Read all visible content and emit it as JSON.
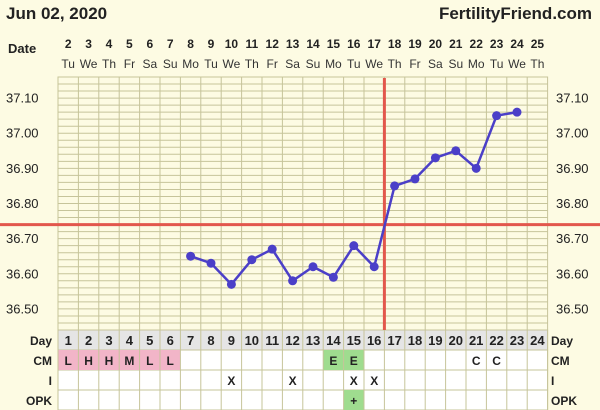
{
  "header": {
    "date": "Jun 02, 2020",
    "brand": "FertilityFriend.com"
  },
  "colors": {
    "background": "#fdfbe3",
    "grid": "#c6c49a",
    "line": "#4b3fc8",
    "coverline": "#e2574c",
    "cm_fertile": "#f2b5c8",
    "cm_egg": "#9fdc8f",
    "opk_positive": "#9fdc8f",
    "table_bg": "#ffffff",
    "header_bg": "#e5e5e5"
  },
  "chart_data": {
    "type": "line",
    "title": "",
    "ylabel": "",
    "row_labels": {
      "date": "Date",
      "day": "Day",
      "cm": "CM",
      "i": "I",
      "opk": "OPK"
    },
    "dates": [
      "2",
      "3",
      "4",
      "5",
      "6",
      "7",
      "8",
      "9",
      "10",
      "11",
      "12",
      "13",
      "14",
      "15",
      "16",
      "17",
      "18",
      "19",
      "20",
      "21",
      "22",
      "23",
      "24",
      "25"
    ],
    "weekdays": [
      "Tu",
      "We",
      "Th",
      "Fr",
      "Sa",
      "Su",
      "Mo",
      "Tu",
      "We",
      "Th",
      "Fr",
      "Sa",
      "Su",
      "Mo",
      "Tu",
      "We",
      "Th",
      "Fr",
      "Sa",
      "Su",
      "Mo",
      "Tu",
      "We",
      "Th"
    ],
    "cycle_days": [
      "1",
      "2",
      "3",
      "4",
      "5",
      "6",
      "7",
      "8",
      "9",
      "10",
      "11",
      "12",
      "13",
      "14",
      "15",
      "16",
      "17",
      "18",
      "19",
      "20",
      "21",
      "22",
      "23",
      "24"
    ],
    "temperatures": [
      null,
      null,
      null,
      null,
      null,
      null,
      36.65,
      36.63,
      36.57,
      36.64,
      36.67,
      36.58,
      36.62,
      36.59,
      36.68,
      36.62,
      36.85,
      36.87,
      36.93,
      36.95,
      36.9,
      37.05,
      37.06,
      null
    ],
    "y_ticks": [
      "37.10",
      "37.00",
      "36.90",
      "36.80",
      "36.70",
      "36.60",
      "36.50"
    ],
    "ylim": [
      36.44,
      37.16
    ],
    "coverline": 36.74,
    "ovulation_day": 16,
    "cm": [
      "L",
      "H",
      "H",
      "M",
      "L",
      "L",
      "",
      "",
      "",
      "",
      "",
      "",
      "",
      "E",
      "E",
      "",
      "",
      "",
      "",
      "",
      "C",
      "C",
      "",
      ""
    ],
    "intercourse": [
      "",
      "",
      "",
      "",
      "",
      "",
      "",
      "",
      "X",
      "",
      "",
      "X",
      "",
      "",
      "X",
      "X",
      "",
      "",
      "",
      "",
      "",
      "",
      "",
      ""
    ],
    "opk": [
      "",
      "",
      "",
      "",
      "",
      "",
      "",
      "",
      "",
      "",
      "",
      "",
      "",
      "",
      "+",
      "",
      "",
      "",
      "",
      "",
      "",
      "",
      "",
      ""
    ],
    "grid": true,
    "legend": "none"
  }
}
